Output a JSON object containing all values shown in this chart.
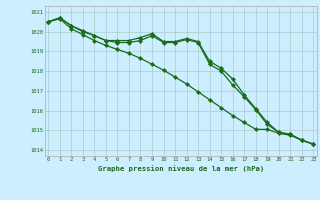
{
  "bg_color": "#cceeff",
  "grid_color": "#aacccc",
  "line_color": "#1a6b1a",
  "xlabel": "Graphe pression niveau de la mer (hPa)",
  "xlim": [
    -0.3,
    23.3
  ],
  "ylim": [
    1013.7,
    1021.3
  ],
  "yticks": [
    1014,
    1015,
    1016,
    1017,
    1018,
    1019,
    1020,
    1021
  ],
  "xticks": [
    0,
    1,
    2,
    3,
    4,
    5,
    6,
    7,
    8,
    9,
    10,
    11,
    12,
    13,
    14,
    15,
    16,
    17,
    18,
    19,
    20,
    21,
    22,
    23
  ],
  "series1": [
    1020.5,
    1020.7,
    1020.3,
    1020.0,
    1019.8,
    1019.55,
    1019.55,
    1019.55,
    1019.7,
    1019.9,
    1019.5,
    1019.5,
    1019.65,
    1019.5,
    1018.5,
    1018.15,
    1017.6,
    1016.8,
    1016.1,
    1015.4,
    1014.9,
    1014.8,
    1014.5,
    1014.3
  ],
  "series2": [
    1020.5,
    1020.65,
    1020.15,
    1019.85,
    1019.55,
    1019.3,
    1019.1,
    1018.9,
    1018.65,
    1018.35,
    1018.05,
    1017.7,
    1017.35,
    1016.95,
    1016.55,
    1016.15,
    1015.75,
    1015.4,
    1015.05,
    1015.05,
    1014.85,
    1014.75,
    1014.5,
    1014.3
  ],
  "series3": [
    1020.5,
    1020.7,
    1020.3,
    1020.05,
    1019.8,
    1019.55,
    1019.45,
    1019.45,
    1019.55,
    1019.8,
    1019.45,
    1019.45,
    1019.6,
    1019.45,
    1018.35,
    1018.0,
    1017.3,
    1016.7,
    1016.05,
    1015.3,
    1014.9,
    1014.8,
    1014.5,
    1014.3
  ]
}
